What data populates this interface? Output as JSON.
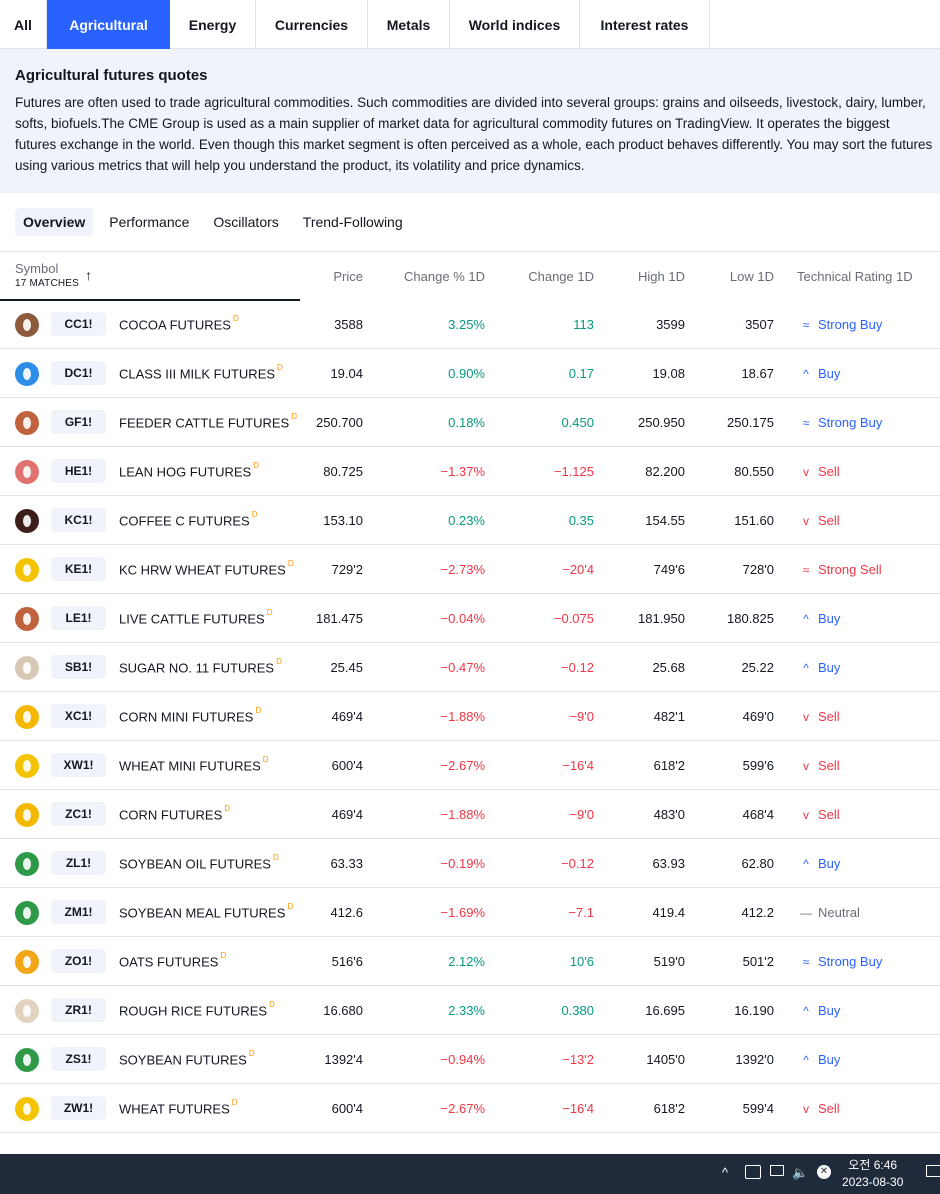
{
  "tabs": [
    {
      "label": "All",
      "active": false
    },
    {
      "label": "Agricultural",
      "active": true
    },
    {
      "label": "Energy",
      "active": false
    },
    {
      "label": "Currencies",
      "active": false
    },
    {
      "label": "Metals",
      "active": false
    },
    {
      "label": "World indices",
      "active": false
    },
    {
      "label": "Interest rates",
      "active": false
    }
  ],
  "description": {
    "title": "Agricultural futures quotes",
    "text": "Futures are often used to trade agricultural commodities. Such commodities are divided into several groups: grains and oilseeds, livestock, dairy, lumber, softs, biofuels.The CME Group is used as a main supplier of market data for agricultural commodity futures on TradingView. It operates the biggest futures exchange in the world. Even though this market segment is often perceived as a whole, each product behaves differently. You may sort the futures using various metrics that will help you understand the product, its volatility and price dynamics."
  },
  "subtabs": [
    "Overview",
    "Performance",
    "Oscillators",
    "Trend-Following"
  ],
  "table": {
    "symbol_header": "Symbol",
    "matches": "17 MATCHES",
    "sort_icon": "↑",
    "columns": [
      "Price",
      "Change % 1D",
      "Change 1D",
      "High 1D",
      "Low 1D",
      "Technical Rating 1D"
    ],
    "delayed_marker": "D",
    "rows": [
      {
        "ticker": "CC1!",
        "name": "COCOA FUTURES",
        "price": "3588",
        "chgp": "3.25%",
        "chg": "113",
        "high": "3599",
        "low": "3507",
        "rating": "Strong Buy",
        "dir": "pos",
        "rclass": "r-buy",
        "ricon": "≈",
        "icon": "cocoa-icon",
        "color": "#8d5a3b"
      },
      {
        "ticker": "DC1!",
        "name": "CLASS III MILK FUTURES",
        "price": "19.04",
        "chgp": "0.90%",
        "chg": "0.17",
        "high": "19.08",
        "low": "18.67",
        "rating": "Buy",
        "dir": "pos",
        "rclass": "r-buy",
        "ricon": "^",
        "icon": "milk-icon",
        "color": "#2d8ee8"
      },
      {
        "ticker": "GF1!",
        "name": "FEEDER CATTLE FUTURES",
        "price": "250.700",
        "chgp": "0.18%",
        "chg": "0.450",
        "high": "250.950",
        "low": "250.175",
        "rating": "Strong Buy",
        "dir": "pos",
        "rclass": "r-buy",
        "ricon": "≈",
        "icon": "cattle-icon",
        "color": "#c0623c"
      },
      {
        "ticker": "HE1!",
        "name": "LEAN HOG FUTURES",
        "price": "80.725",
        "chgp": "−1.37%",
        "chg": "−1.125",
        "high": "82.200",
        "low": "80.550",
        "rating": "Sell",
        "dir": "neg",
        "rclass": "r-sell",
        "ricon": "v",
        "icon": "hog-icon",
        "color": "#e0736f"
      },
      {
        "ticker": "KC1!",
        "name": "COFFEE C FUTURES",
        "price": "153.10",
        "chgp": "0.23%",
        "chg": "0.35",
        "high": "154.55",
        "low": "151.60",
        "rating": "Sell",
        "dir": "pos",
        "rclass": "r-sell",
        "ricon": "v",
        "icon": "coffee-icon",
        "color": "#3b1e1a"
      },
      {
        "ticker": "KE1!",
        "name": "KC HRW WHEAT FUTURES",
        "price": "729'2",
        "chgp": "−2.73%",
        "chg": "−20'4",
        "high": "749'6",
        "low": "728'0",
        "rating": "Strong Sell",
        "dir": "neg",
        "rclass": "r-sell",
        "ricon": "≈",
        "icon": "wheat-icon",
        "color": "#f5c400"
      },
      {
        "ticker": "LE1!",
        "name": "LIVE CATTLE FUTURES",
        "price": "181.475",
        "chgp": "−0.04%",
        "chg": "−0.075",
        "high": "181.950",
        "low": "180.825",
        "rating": "Buy",
        "dir": "neg",
        "rclass": "r-buy",
        "ricon": "^",
        "icon": "cattle-icon",
        "color": "#c0623c"
      },
      {
        "ticker": "SB1!",
        "name": "SUGAR NO. 11 FUTURES",
        "price": "25.45",
        "chgp": "−0.47%",
        "chg": "−0.12",
        "high": "25.68",
        "low": "25.22",
        "rating": "Buy",
        "dir": "neg",
        "rclass": "r-buy",
        "ricon": "^",
        "icon": "sugar-icon",
        "color": "#d8c9b6"
      },
      {
        "ticker": "XC1!",
        "name": "CORN MINI FUTURES",
        "price": "469'4",
        "chgp": "−1.88%",
        "chg": "−9'0",
        "high": "482'1",
        "low": "469'0",
        "rating": "Sell",
        "dir": "neg",
        "rclass": "r-sell",
        "ricon": "v",
        "icon": "corn-icon",
        "color": "#f5b800"
      },
      {
        "ticker": "XW1!",
        "name": "WHEAT MINI FUTURES",
        "price": "600'4",
        "chgp": "−2.67%",
        "chg": "−16'4",
        "high": "618'2",
        "low": "599'6",
        "rating": "Sell",
        "dir": "neg",
        "rclass": "r-sell",
        "ricon": "v",
        "icon": "wheat-icon",
        "color": "#f5c400"
      },
      {
        "ticker": "ZC1!",
        "name": "CORN FUTURES",
        "price": "469'4",
        "chgp": "−1.88%",
        "chg": "−9'0",
        "high": "483'0",
        "low": "468'4",
        "rating": "Sell",
        "dir": "neg",
        "rclass": "r-sell",
        "ricon": "v",
        "icon": "corn-icon",
        "color": "#f5b800"
      },
      {
        "ticker": "ZL1!",
        "name": "SOYBEAN OIL FUTURES",
        "price": "63.33",
        "chgp": "−0.19%",
        "chg": "−0.12",
        "high": "63.93",
        "low": "62.80",
        "rating": "Buy",
        "dir": "neg",
        "rclass": "r-buy",
        "ricon": "^",
        "icon": "soybean-oil-icon",
        "color": "#2e9a48"
      },
      {
        "ticker": "ZM1!",
        "name": "SOYBEAN MEAL FUTURES",
        "price": "412.6",
        "chgp": "−1.69%",
        "chg": "−7.1",
        "high": "419.4",
        "low": "412.2",
        "rating": "Neutral",
        "dir": "neg",
        "rclass": "r-neutral",
        "ricon": "—",
        "icon": "soybean-meal-icon",
        "color": "#2e9a48"
      },
      {
        "ticker": "ZO1!",
        "name": "OATS FUTURES",
        "price": "516'6",
        "chgp": "2.12%",
        "chg": "10'6",
        "high": "519'0",
        "low": "501'2",
        "rating": "Strong Buy",
        "dir": "pos",
        "rclass": "r-buy",
        "ricon": "≈",
        "icon": "oats-icon",
        "color": "#f2a516"
      },
      {
        "ticker": "ZR1!",
        "name": "ROUGH RICE FUTURES",
        "price": "16.680",
        "chgp": "2.33%",
        "chg": "0.380",
        "high": "16.695",
        "low": "16.190",
        "rating": "Buy",
        "dir": "pos",
        "rclass": "r-buy",
        "ricon": "^",
        "icon": "rice-icon",
        "color": "#e2d3c1"
      },
      {
        "ticker": "ZS1!",
        "name": "SOYBEAN FUTURES",
        "price": "1392'4",
        "chgp": "−0.94%",
        "chg": "−13'2",
        "high": "1405'0",
        "low": "1392'0",
        "rating": "Buy",
        "dir": "neg",
        "rclass": "r-buy",
        "ricon": "^",
        "icon": "soybean-icon",
        "color": "#2e9a48"
      },
      {
        "ticker": "ZW1!",
        "name": "WHEAT FUTURES",
        "price": "600'4",
        "chgp": "−2.67%",
        "chg": "−16'4",
        "high": "618'2",
        "low": "599'4",
        "rating": "Sell",
        "dir": "neg",
        "rclass": "r-sell",
        "ricon": "v",
        "icon": "wheat-icon",
        "color": "#f5c400"
      }
    ]
  },
  "taskbar": {
    "time": "오전 6:46",
    "date": "2023-08-30",
    "tray_icons": [
      "chevron-up-icon",
      "screen-capture-icon",
      "network-icon",
      "volume-icon",
      "close-circle-icon",
      "notification-icon"
    ]
  }
}
